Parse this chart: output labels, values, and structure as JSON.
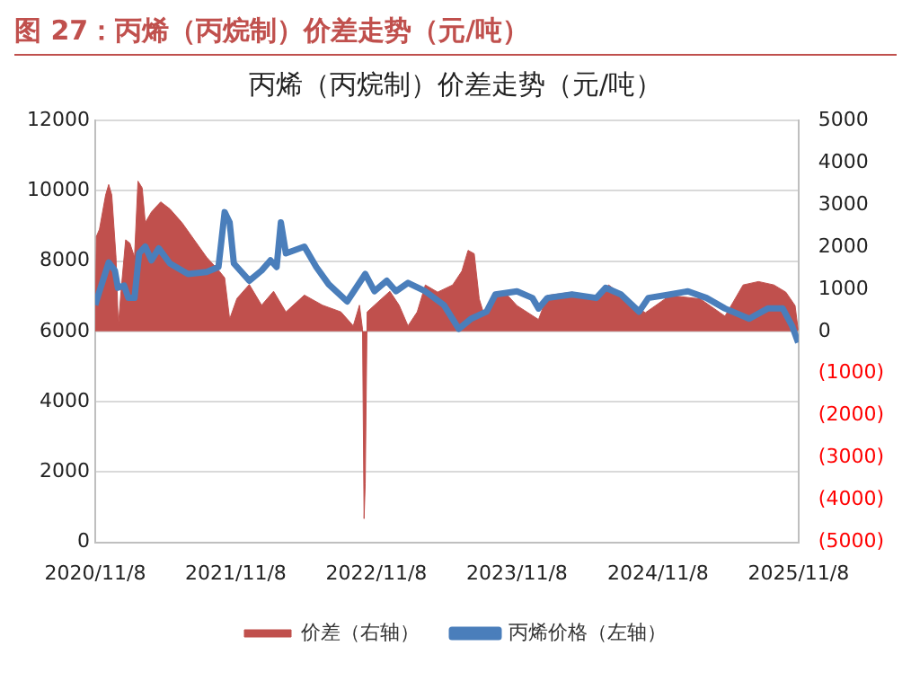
{
  "chart_data": {
    "type": "line",
    "title": "图 27：丙烯（丙烷制）价差走势（元/吨）",
    "subtitle": "丙烯（丙烷制）价差走势（元/吨）",
    "xlim": [
      "2020-11-08",
      "2025-11-08"
    ],
    "xticks": [
      {
        "value": "2020-11-08",
        "label": "2020/11/8"
      },
      {
        "value": "2021-11-08",
        "label": "2021/11/8"
      },
      {
        "value": "2022-11-08",
        "label": "2022/11/8"
      },
      {
        "value": "2023-11-08",
        "label": "2023/11/8"
      },
      {
        "value": "2024-11-08",
        "label": "2024/11/8"
      },
      {
        "value": "2025-11-08",
        "label": "2025/11/8"
      }
    ],
    "ylim": [
      0,
      12000
    ],
    "yticks": [
      0,
      2000,
      4000,
      6000,
      8000,
      10000,
      12000
    ],
    "y2lim": [
      -5000,
      5000
    ],
    "y2ticks": [
      {
        "value": -5000,
        "label": "(5000)"
      },
      {
        "value": -4000,
        "label": "(4000)"
      },
      {
        "value": -3000,
        "label": "(3000)"
      },
      {
        "value": -2000,
        "label": "(2000)"
      },
      {
        "value": -1000,
        "label": "(1000)"
      },
      0,
      1000,
      2000,
      3000,
      4000,
      5000
    ],
    "grid": "y",
    "legend": "bottom",
    "marker": "none",
    "series": [
      {
        "name": "价差（右轴）",
        "type": "area",
        "axis": "y2",
        "color": "#c0504d",
        "x": [
          "2020-11-08",
          "2020-11-11",
          "2020-11-19",
          "2020-12-05",
          "2020-12-13",
          "2020-12-21",
          "2021-01-01",
          "2021-01-07",
          "2021-01-14",
          "2021-01-26",
          "2021-02-06",
          "2021-02-18",
          "2021-02-27",
          "2021-03-10",
          "2021-03-18",
          "2021-04-03",
          "2021-04-27",
          "2021-05-21",
          "2021-06-21",
          "2021-07-23",
          "2021-08-24",
          "2021-09-25",
          "2021-10-10",
          "2021-10-23",
          "2021-11-11",
          "2021-12-13",
          "2022-01-14",
          "2022-02-14",
          "2022-03-18",
          "2022-05-05",
          "2022-06-21",
          "2022-08-08",
          "2022-09-09",
          "2022-09-25",
          "2022-10-03",
          "2022-10-07",
          "2022-10-10",
          "2022-10-15",
          "2022-11-03",
          "2022-12-13",
          "2023-01-06",
          "2023-01-29",
          "2023-02-22",
          "2023-03-15",
          "2023-04-16",
          "2023-05-25",
          "2023-06-18",
          "2023-07-04",
          "2023-07-20",
          "2023-08-02",
          "2023-08-13",
          "2023-09-06",
          "2023-10-07",
          "2023-11-08",
          "2024-01-03",
          "2024-01-26",
          "2024-03-30",
          "2024-06-01",
          "2024-07-03",
          "2024-08-20",
          "2024-10-06",
          "2024-12-09",
          "2025-02-26",
          "2025-05-01",
          "2025-06-17",
          "2025-07-27",
          "2025-09-05",
          "2025-10-06",
          "2025-10-30",
          "2025-11-07"
        ],
        "values": [
          0,
          2250,
          2420,
          3230,
          3480,
          3230,
          1760,
          130,
          950,
          2170,
          2090,
          1760,
          3560,
          3400,
          2580,
          2830,
          3070,
          2900,
          2580,
          2170,
          1760,
          1440,
          1270,
          290,
          780,
          1110,
          620,
          950,
          460,
          860,
          620,
          460,
          130,
          620,
          50,
          -4440,
          -3620,
          460,
          620,
          950,
          620,
          130,
          460,
          1100,
          930,
          1100,
          1430,
          1920,
          1840,
          770,
          440,
          770,
          930,
          610,
          280,
          850,
          930,
          770,
          1100,
          770,
          440,
          850,
          770,
          360,
          1100,
          1180,
          1100,
          930,
          610,
          30
        ]
      },
      {
        "name": "丙烯价格（左轴）",
        "type": "line",
        "axis": "y",
        "color": "#4a7ebb",
        "x": [
          "2020-11-08",
          "2020-11-19",
          "2020-12-13",
          "2020-12-29",
          "2021-01-06",
          "2021-01-22",
          "2021-02-02",
          "2021-02-18",
          "2021-03-02",
          "2021-03-18",
          "2021-04-03",
          "2021-04-22",
          "2021-05-21",
          "2021-07-07",
          "2021-08-24",
          "2021-09-24",
          "2021-10-10",
          "2021-10-23",
          "2021-11-03",
          "2021-12-13",
          "2022-01-14",
          "2022-02-06",
          "2022-02-22",
          "2022-03-05",
          "2022-03-18",
          "2022-05-05",
          "2022-06-05",
          "2022-07-07",
          "2022-08-24",
          "2022-10-10",
          "2022-11-03",
          "2022-12-05",
          "2022-12-29",
          "2023-01-29",
          "2023-03-15",
          "2023-05-02",
          "2023-06-10",
          "2023-07-12",
          "2023-08-21",
          "2023-09-13",
          "2023-11-08",
          "2023-12-18",
          "2024-01-03",
          "2024-01-26",
          "2024-03-30",
          "2024-06-01",
          "2024-06-25",
          "2024-08-04",
          "2024-09-20",
          "2024-10-14",
          "2024-12-09",
          "2025-01-25",
          "2025-03-14",
          "2025-05-01",
          "2025-07-03",
          "2025-08-20",
          "2025-09-28",
          "2025-10-22",
          "2025-11-07"
        ],
        "values": [
          6750,
          7140,
          7960,
          7730,
          7240,
          7300,
          6950,
          6950,
          8220,
          8410,
          8020,
          8360,
          7930,
          7630,
          7690,
          7830,
          9390,
          9100,
          7930,
          7440,
          7730,
          8020,
          7830,
          9100,
          8220,
          8410,
          7830,
          7340,
          6850,
          7630,
          7140,
          7440,
          7140,
          7380,
          7140,
          6750,
          6070,
          6360,
          6560,
          7050,
          7140,
          6950,
          6650,
          6950,
          7050,
          6950,
          7240,
          7050,
          6560,
          6950,
          7050,
          7140,
          6950,
          6650,
          6360,
          6650,
          6650,
          6160,
          5680
        ]
      }
    ]
  }
}
